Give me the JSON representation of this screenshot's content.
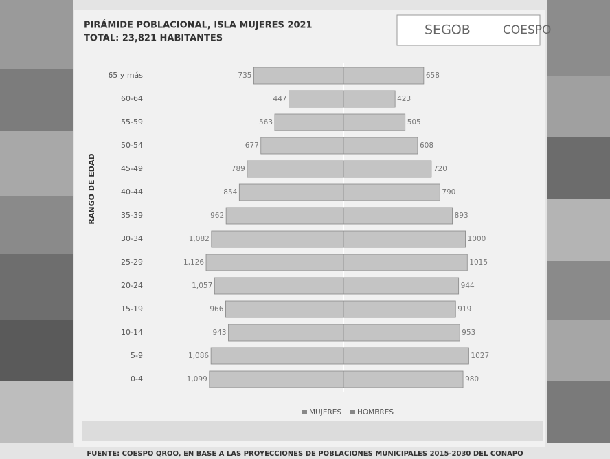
{
  "chart_data": {
    "type": "pyramid",
    "title": "PIRÁMIDE POBLACIONAL, ISLA MUJERES 2021",
    "subtitle": "TOTAL: 23,821 HABITANTES",
    "y_label": "RANGO DE EDAD",
    "logos": [
      "SEGOB",
      "COESPO"
    ],
    "source": "FUENTE: COESPO QROO, EN BASE A LAS PROYECCIONES DE POBLACIONES MUNICIPALES 2015-2030 DEL CONAPO",
    "categories": [
      "65 y más",
      "60-64",
      "55-59",
      "50-54",
      "45-49",
      "40-44",
      "35-39",
      "30-34",
      "25-29",
      "20-24",
      "15-19",
      "10-14",
      "5-9",
      "0-4"
    ],
    "series": [
      {
        "name": "MUJERES",
        "color": "#c4c4c4",
        "values": [
          735,
          447,
          563,
          677,
          789,
          854,
          962,
          1082,
          1126,
          1057,
          966,
          943,
          1086,
          1099
        ],
        "value_labels": [
          "735",
          "447",
          "563",
          "677",
          "789",
          "854",
          "962",
          "1,082",
          "1,126",
          "1,057",
          "966",
          "943",
          "1,086",
          "1,099"
        ]
      },
      {
        "name": "HOMBRES",
        "color": "#c4c4c4",
        "values": [
          658,
          423,
          505,
          608,
          720,
          790,
          893,
          1000,
          1015,
          944,
          919,
          953,
          1027,
          980
        ]
      }
    ]
  }
}
